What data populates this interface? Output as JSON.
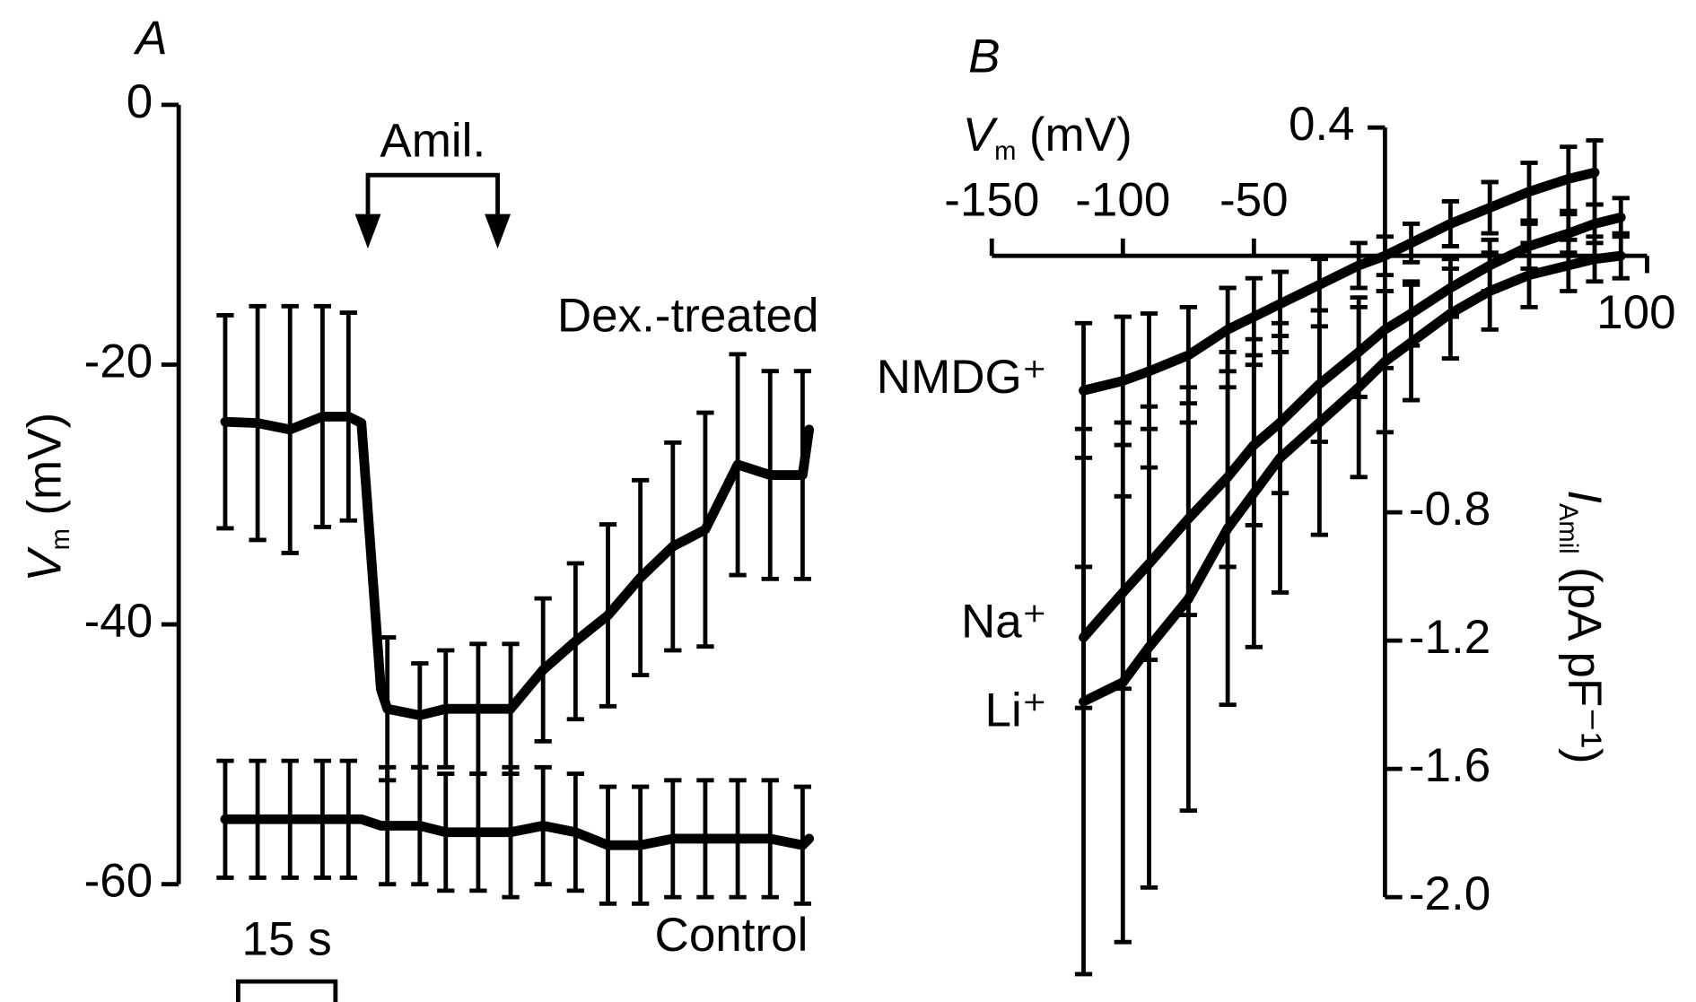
{
  "chart_data": [
    {
      "type": "line",
      "panel_label": "A",
      "y_label": {
        "symbol": "V",
        "subscript": "m",
        "unit": "(mV)"
      },
      "ylim": [
        -60,
        0
      ],
      "yticks": [
        0,
        -20,
        -40,
        -60
      ],
      "scale_bar": {
        "label": "15 s",
        "value": 15
      },
      "annotation": {
        "text": "Amil.",
        "x": [
          22,
          42
        ]
      },
      "x": [
        0,
        5,
        10,
        15,
        19,
        21,
        24,
        25,
        30,
        34,
        39,
        44,
        49,
        54,
        59,
        64,
        69,
        74,
        79,
        84,
        89,
        90
      ],
      "series": [
        {
          "name": "Dex.-treated",
          "color": "#000000",
          "values": [
            -24.4,
            -24.5,
            -25,
            -24,
            -24,
            -24.5,
            -45,
            -46.5,
            -47,
            -46.5,
            -46.5,
            -46.5,
            -43.5,
            -41.3,
            -39.3,
            -36.4,
            -34,
            -32.7,
            -27.7,
            -28.5,
            -28.5,
            -25
          ],
          "errors": [
            8.2,
            9,
            9.5,
            8.5,
            8,
            null,
            null,
            5.5,
            4,
            4.5,
            5,
            5,
            5.5,
            6,
            7,
            7.5,
            8,
            9,
            8.5,
            8,
            8,
            null
          ]
        },
        {
          "name": "Control",
          "color": "#000000",
          "values": [
            -55,
            -55,
            -55,
            -55,
            -55,
            -55,
            -55.5,
            -55.5,
            -55.5,
            -56,
            -56,
            -56,
            -55.5,
            -56,
            -57,
            -57,
            -56.5,
            -56.5,
            -56.5,
            -56.5,
            -57,
            -56.5
          ],
          "errors": [
            4.5,
            4.5,
            4.5,
            4.5,
            4.5,
            null,
            null,
            4.5,
            4.5,
            4.5,
            4.5,
            5,
            4.5,
            4.5,
            4.5,
            4.5,
            4.5,
            4.5,
            4.5,
            4.5,
            4.5,
            null
          ]
        }
      ]
    },
    {
      "type": "line",
      "panel_label": "B",
      "x_label": {
        "symbol": "V",
        "subscript": "m",
        "unit": "(mV)"
      },
      "y_label": {
        "symbol": "I",
        "subscript": "Amil",
        "unit": "(pA pF⁻¹)"
      },
      "xlim": [
        -150,
        100
      ],
      "xticks": [
        -150,
        -100,
        -50,
        100
      ],
      "ylim": [
        -2,
        0.4
      ],
      "yticks": [
        0.4,
        -0.8,
        -1.2,
        -1.6,
        {
          "value": -2,
          "label": "-2.0"
        }
      ],
      "x": [
        -115,
        -100,
        -90,
        -75,
        -60,
        -50,
        -40,
        -25,
        -10,
        0,
        10,
        25,
        40,
        55,
        70,
        80,
        90
      ],
      "series": [
        {
          "name": "NMDG⁺",
          "color": "#000000",
          "values": [
            -0.42,
            -0.39,
            -0.36,
            -0.31,
            -0.23,
            -0.19,
            -0.15,
            -0.09,
            -0.03,
            0,
            0.04,
            0.1,
            0.15,
            0.2,
            0.24,
            0.26,
            null
          ],
          "errors": [
            0.21,
            0.2,
            0.18,
            0.15,
            0.13,
            0.12,
            0.1,
            0.08,
            0.07,
            0.06,
            0.06,
            0.07,
            0.08,
            0.09,
            0.1,
            0.1,
            null
          ]
        },
        {
          "name": "Na⁺",
          "color": "#000000",
          "values": [
            -1.19,
            -1.05,
            -0.96,
            -0.82,
            -0.69,
            -0.59,
            -0.52,
            -0.4,
            -0.3,
            -0.23,
            -0.18,
            -0.1,
            -0.03,
            0.03,
            0.07,
            0.1,
            0.12
          ],
          "errors": [
            0.22,
            0.3,
            0.3,
            0.3,
            0.28,
            0.25,
            0.22,
            0.18,
            0.14,
            0.12,
            0.1,
            0.09,
            0.08,
            0.07,
            0.06,
            0.06,
            0.06
          ]
        },
        {
          "name": "Li⁺",
          "color": "#000000",
          "values": [
            -1.39,
            -1.33,
            -1.22,
            -1.07,
            -0.85,
            -0.74,
            -0.63,
            -0.52,
            -0.41,
            -0.33,
            -0.27,
            -0.18,
            -0.11,
            -0.06,
            -0.03,
            -0.01,
            0
          ],
          "errors": [
            0.85,
            0.81,
            0.75,
            0.66,
            0.55,
            0.48,
            0.42,
            0.35,
            0.28,
            0.22,
            0.18,
            0.14,
            0.12,
            0.1,
            0.08,
            0.07,
            0.07
          ]
        }
      ]
    }
  ]
}
